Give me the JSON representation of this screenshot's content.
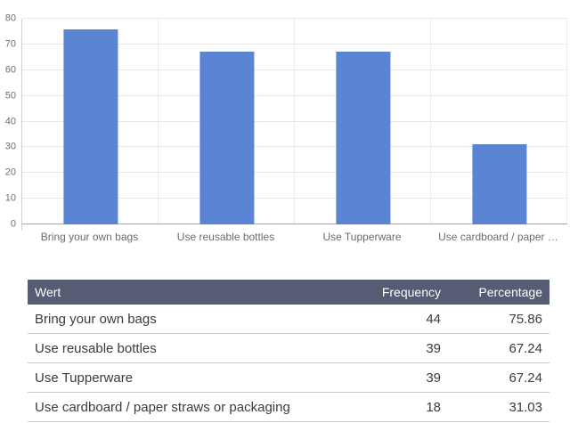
{
  "chart_data": {
    "type": "bar",
    "categories": [
      "Bring your own bags",
      "Use reusable bottles",
      "Use Tupperware",
      "Use cardboard / paper straws or packaging"
    ],
    "tick_labels": [
      "Bring your own bags",
      "Use reusable bottles",
      "Use Tupperware",
      "Use cardboard / paper …"
    ],
    "values": [
      75.86,
      67.24,
      67.24,
      31.03
    ],
    "title": "",
    "xlabel": "",
    "ylabel": "",
    "ylim": [
      0,
      80
    ],
    "ytick_step": 10,
    "yticks": [
      0,
      10,
      20,
      30,
      40,
      50,
      60,
      70,
      80
    ],
    "grid": true,
    "legend_position": "none",
    "bar_color": "#5c84d4"
  },
  "table": {
    "columns": [
      {
        "label": "Wert",
        "align": "left"
      },
      {
        "label": "Frequency",
        "align": "right"
      },
      {
        "label": "Percentage",
        "align": "right"
      }
    ],
    "rows": [
      [
        "Bring your own bags",
        "44",
        "75.86"
      ],
      [
        "Use reusable bottles",
        "39",
        "67.24"
      ],
      [
        "Use Tupperware",
        "39",
        "67.24"
      ],
      [
        "Use cardboard / paper straws or packaging",
        "18",
        "31.03"
      ]
    ]
  },
  "colors": {
    "bar": "#5c84d4",
    "table_header_bg": "#575c75",
    "table_header_text": "#ffffff",
    "gridline": "#e8e8e8",
    "axis_baseline": "#a8a8a8",
    "axis_label_text": "#6e6e6e",
    "row_divider": "#c8c8c8",
    "body_text": "#3c3c3c"
  }
}
